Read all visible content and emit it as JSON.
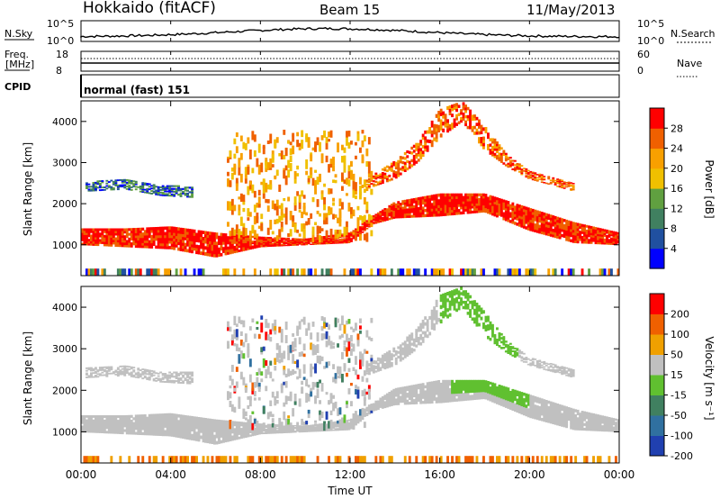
{
  "header": {
    "title": "Hokkaido (fitACF)",
    "beam": "Beam 15",
    "date": "11/May/2013"
  },
  "top_panels": {
    "nsky_label": "N.Sky",
    "nsky_ticks": [
      "10^5",
      "10^0"
    ],
    "nsearch_label": "N.Search",
    "freq_label_1": "Freq.",
    "freq_label_2": "[MHz]",
    "freq_ticks": [
      "18",
      "8"
    ],
    "nave_ticks": [
      "60",
      "0"
    ],
    "nave_label": "Nave",
    "cpid_label": "CPID",
    "cpid_text": "normal (fast) 151"
  },
  "chart_data": [
    {
      "type": "heatmap",
      "name": "power",
      "ylabel": "Slant Range [km]",
      "ylim": [
        250,
        4500
      ],
      "yticks": [
        "1000",
        "2000",
        "3000",
        "4000"
      ],
      "colorbar_label": "Power [dB]",
      "colorbar_ticks": [
        "4",
        "8",
        "12",
        "16",
        "20",
        "24",
        "28"
      ],
      "colors": [
        "#0000ff",
        "#2050a0",
        "#408060",
        "#60a040",
        "#f0c000",
        "#f8a000",
        "#f06000",
        "#ff0000"
      ],
      "bands": [
        {
          "name": "main_band",
          "t0": 0,
          "t1": 24,
          "points": [
            [
              0,
              1000,
              1400
            ],
            [
              2,
              950,
              1400
            ],
            [
              4,
              900,
              1450
            ],
            [
              6,
              700,
              1300
            ],
            [
              8,
              950,
              1200
            ],
            [
              10,
              1000,
              1150
            ],
            [
              12,
              1050,
              1300
            ],
            [
              13,
              1500,
              1700
            ],
            [
              14,
              1650,
              2050
            ],
            [
              16,
              1700,
              2250
            ],
            [
              18,
              1800,
              2250
            ],
            [
              20,
              1350,
              1900
            ],
            [
              22,
              1050,
              1550
            ],
            [
              24,
              1000,
              1300
            ]
          ],
          "level": 28
        },
        {
          "name": "upper_arc",
          "points": [
            [
              12.7,
              2350,
              2600
            ],
            [
              14,
              2600,
              3050
            ],
            [
              15,
              3000,
              3500
            ],
            [
              16,
              3600,
              4300
            ],
            [
              17,
              4000,
              4500
            ],
            [
              18,
              3300,
              3900
            ],
            [
              19,
              2900,
              3200
            ],
            [
              20,
              2600,
              2800
            ],
            [
              21,
              2450,
              2650
            ],
            [
              22,
              2300,
              2500
            ]
          ],
          "level": 24
        },
        {
          "name": "early_echo",
          "points": [
            [
              0.2,
              2300,
              2550
            ],
            [
              2,
              2350,
              2600
            ],
            [
              3.5,
              2200,
              2450
            ],
            [
              5,
              2150,
              2450
            ]
          ],
          "level": 10
        }
      ]
    },
    {
      "type": "heatmap",
      "name": "velocity",
      "ylabel": "Slant Range [km]",
      "ylim": [
        250,
        4500
      ],
      "yticks": [
        "1000",
        "2000",
        "3000",
        "4000"
      ],
      "colorbar_label": "Velocity [m s⁻¹]",
      "colorbar_ticks": [
        "200",
        "100",
        "50",
        "15",
        "-15",
        "-50",
        "-100",
        "-200"
      ],
      "colors": [
        "#2040b0",
        "#3070a0",
        "#408060",
        "#60c030",
        "#c0c0c0",
        "#f0a000",
        "#f06000",
        "#ff0000"
      ],
      "xlabel": "Time UT",
      "xticks": [
        "00:00",
        "04:00",
        "08:00",
        "12:00",
        "16:00",
        "20:00",
        "00:00"
      ]
    }
  ]
}
